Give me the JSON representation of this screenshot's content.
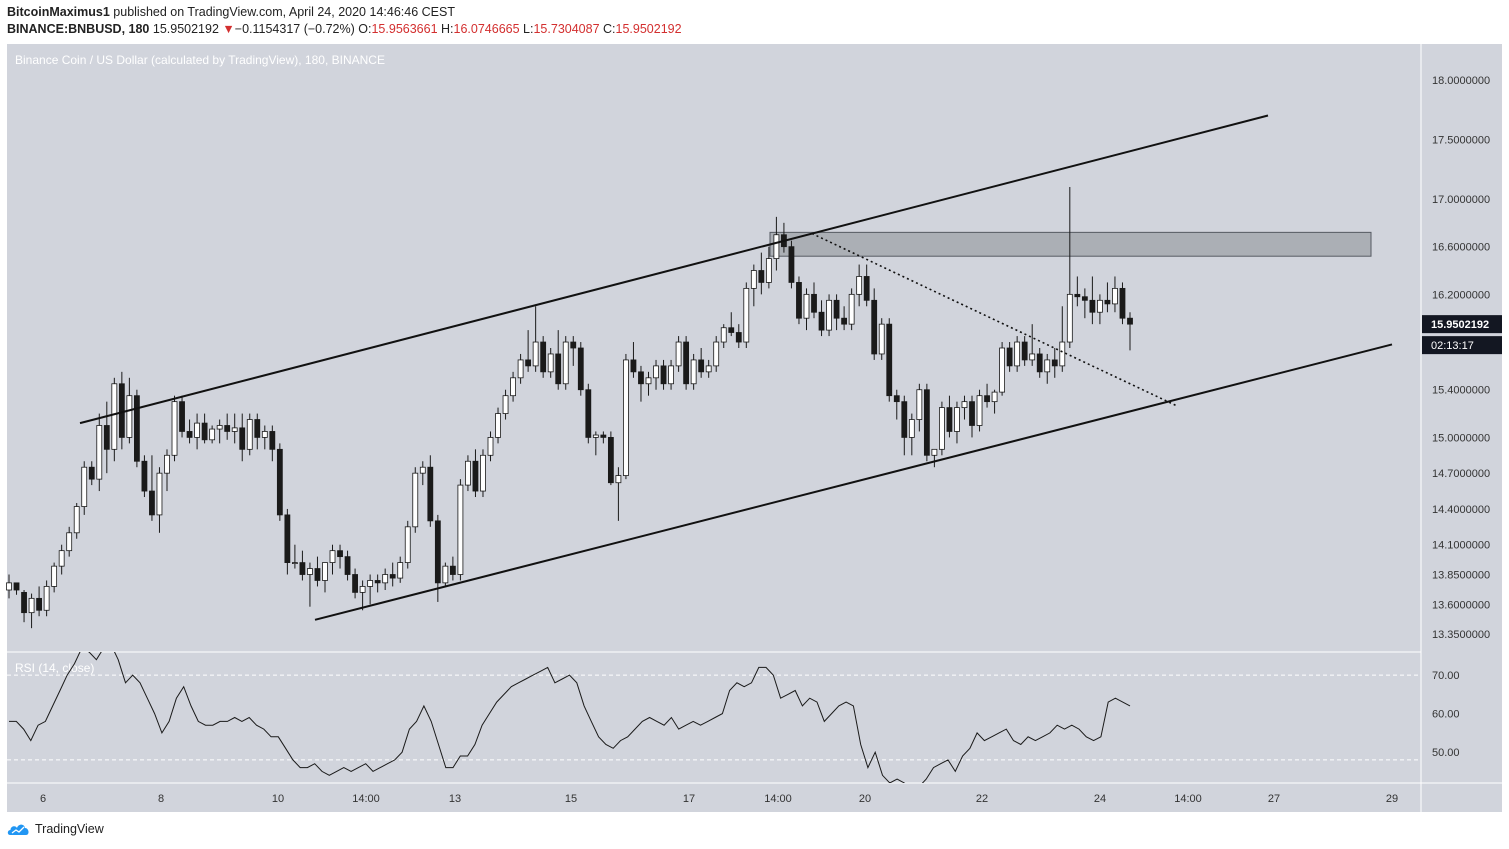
{
  "header": {
    "author": "BitcoinMaximus1",
    "published_text": "published on TradingView.com, April 24, 2020 14:46:46 CEST",
    "symbol": "BINANCE:BNBUSD, 180",
    "last_price": "15.9502192",
    "change_arrow": "▼",
    "change_text": "−0.1154317 (−0.72%)",
    "o_label": "O:",
    "o_value": "15.9563661",
    "h_label": "H:",
    "h_value": "16.0746665",
    "l_label": "L:",
    "l_value": "15.7304087",
    "c_label": "C:",
    "c_value": "15.9502192"
  },
  "footer": {
    "brand": "TradingView"
  },
  "colors": {
    "background": "#d1d4dc",
    "bullish": "#ffffff",
    "bearish": "#1a1a1a",
    "price_tag_bg": "#131722",
    "resistance_zone": "#8c8f96"
  },
  "chart_data": [
    {
      "type": "candlestick",
      "title": "Binance Coin / US Dollar (calculated by TradingView), 180, BINANCE",
      "ylim": [
        13.2,
        18.3
      ],
      "x_ticks": [
        "6",
        "8",
        "10",
        "14:00",
        "13",
        "15",
        "17",
        "14:00",
        "20",
        "22",
        "24",
        "14:00",
        "27",
        "29"
      ],
      "y_ticks": [
        "13.3500000",
        "13.6000000",
        "13.8500000",
        "14.1000000",
        "14.4000000",
        "14.7000000",
        "15.0000000",
        "15.4000000",
        "16.2000000",
        "16.6000000",
        "17.0000000",
        "17.5000000",
        "18.0000000"
      ],
      "last_price_label": "15.9502192",
      "countdown_label": "02:13:17",
      "candles": [
        [
          13.72,
          13.85,
          13.65,
          13.78
        ],
        [
          13.78,
          13.78,
          13.68,
          13.72
        ],
        [
          13.7,
          13.72,
          13.45,
          13.53
        ],
        [
          13.53,
          13.69,
          13.4,
          13.65
        ],
        [
          13.65,
          13.75,
          13.5,
          13.55
        ],
        [
          13.55,
          13.8,
          13.5,
          13.75
        ],
        [
          13.75,
          13.95,
          13.7,
          13.92
        ],
        [
          13.92,
          14.1,
          13.85,
          14.05
        ],
        [
          14.05,
          14.25,
          14.0,
          14.2
        ],
        [
          14.2,
          14.45,
          14.15,
          14.42
        ],
        [
          14.42,
          14.8,
          14.35,
          14.75
        ],
        [
          14.75,
          14.8,
          14.6,
          14.65
        ],
        [
          14.65,
          15.2,
          14.55,
          15.1
        ],
        [
          15.1,
          15.3,
          14.7,
          14.9
        ],
        [
          14.9,
          15.5,
          14.8,
          15.45
        ],
        [
          15.45,
          15.55,
          14.9,
          15.0
        ],
        [
          15.0,
          15.5,
          14.95,
          15.35
        ],
        [
          15.35,
          15.4,
          14.75,
          14.8
        ],
        [
          14.8,
          14.85,
          14.5,
          14.55
        ],
        [
          14.55,
          14.85,
          14.3,
          14.35
        ],
        [
          14.35,
          14.75,
          14.2,
          14.7
        ],
        [
          14.7,
          14.9,
          14.55,
          14.85
        ],
        [
          14.85,
          15.35,
          14.8,
          15.3
        ],
        [
          15.3,
          15.35,
          15.0,
          15.05
        ],
        [
          15.05,
          15.15,
          14.95,
          15.0
        ],
        [
          15.0,
          15.2,
          14.9,
          15.12
        ],
        [
          15.12,
          15.2,
          14.95,
          14.98
        ],
        [
          14.98,
          15.1,
          14.95,
          15.07
        ],
        [
          15.07,
          15.15,
          14.95,
          15.1
        ],
        [
          15.1,
          15.2,
          14.98,
          15.05
        ],
        [
          15.05,
          15.2,
          14.95,
          15.08
        ],
        [
          15.08,
          15.2,
          14.8,
          14.9
        ],
        [
          14.9,
          15.2,
          14.85,
          15.15
        ],
        [
          15.15,
          15.2,
          14.9,
          15.0
        ],
        [
          15.0,
          15.1,
          14.9,
          15.05
        ],
        [
          15.05,
          15.1,
          14.8,
          14.9
        ],
        [
          14.9,
          14.95,
          14.3,
          14.35
        ],
        [
          14.35,
          14.4,
          13.85,
          13.95
        ],
        [
          13.95,
          14.1,
          13.9,
          13.95
        ],
        [
          13.95,
          14.05,
          13.8,
          13.85
        ],
        [
          13.85,
          13.95,
          13.58,
          13.9
        ],
        [
          13.9,
          14.0,
          13.75,
          13.8
        ],
        [
          13.8,
          13.95,
          13.7,
          13.95
        ],
        [
          13.95,
          14.1,
          13.85,
          14.05
        ],
        [
          14.05,
          14.1,
          13.9,
          14.0
        ],
        [
          14.0,
          14.05,
          13.8,
          13.85
        ],
        [
          13.85,
          13.9,
          13.65,
          13.7
        ],
        [
          13.7,
          13.8,
          13.55,
          13.75
        ],
        [
          13.75,
          13.85,
          13.6,
          13.8
        ],
        [
          13.8,
          13.85,
          13.7,
          13.78
        ],
        [
          13.78,
          13.9,
          13.72,
          13.85
        ],
        [
          13.85,
          13.95,
          13.75,
          13.82
        ],
        [
          13.82,
          14.0,
          13.78,
          13.95
        ],
        [
          13.95,
          14.3,
          13.9,
          14.25
        ],
        [
          14.25,
          14.75,
          14.2,
          14.7
        ],
        [
          14.7,
          14.8,
          14.6,
          14.75
        ],
        [
          14.75,
          14.85,
          14.25,
          14.3
        ],
        [
          14.3,
          14.35,
          13.62,
          13.78
        ],
        [
          13.78,
          13.95,
          13.75,
          13.92
        ],
        [
          13.92,
          14.0,
          13.8,
          13.85
        ],
        [
          13.85,
          14.65,
          13.8,
          14.6
        ],
        [
          14.6,
          14.85,
          14.55,
          14.8
        ],
        [
          14.8,
          14.9,
          14.5,
          14.55
        ],
        [
          14.55,
          14.9,
          14.5,
          14.85
        ],
        [
          14.85,
          15.05,
          14.8,
          15.0
        ],
        [
          15.0,
          15.25,
          14.95,
          15.2
        ],
        [
          15.2,
          15.4,
          15.15,
          15.35
        ],
        [
          15.35,
          15.55,
          15.3,
          15.5
        ],
        [
          15.5,
          15.7,
          15.45,
          15.65
        ],
        [
          15.65,
          15.9,
          15.55,
          15.6
        ],
        [
          15.6,
          16.1,
          15.55,
          15.8
        ],
        [
          15.8,
          15.85,
          15.5,
          15.55
        ],
        [
          15.55,
          15.75,
          15.5,
          15.7
        ],
        [
          15.7,
          15.9,
          15.4,
          15.45
        ],
        [
          15.45,
          15.85,
          15.4,
          15.8
        ],
        [
          15.8,
          15.85,
          15.6,
          15.75
        ],
        [
          15.75,
          15.8,
          15.35,
          15.4
        ],
        [
          15.4,
          15.45,
          14.95,
          15.0
        ],
        [
          15.0,
          15.05,
          14.85,
          15.02
        ],
        [
          15.02,
          15.05,
          14.95,
          15.0
        ],
        [
          15.0,
          15.05,
          14.6,
          14.62
        ],
        [
          14.62,
          14.75,
          14.3,
          14.68
        ],
        [
          14.68,
          15.7,
          14.65,
          15.65
        ],
        [
          15.65,
          15.8,
          15.5,
          15.55
        ],
        [
          15.55,
          15.6,
          15.3,
          15.45
        ],
        [
          15.45,
          15.55,
          15.35,
          15.5
        ],
        [
          15.5,
          15.65,
          15.4,
          15.6
        ],
        [
          15.6,
          15.65,
          15.4,
          15.45
        ],
        [
          15.45,
          15.65,
          15.4,
          15.6
        ],
        [
          15.6,
          15.85,
          15.55,
          15.8
        ],
        [
          15.8,
          15.85,
          15.4,
          15.45
        ],
        [
          15.45,
          15.7,
          15.4,
          15.65
        ],
        [
          15.65,
          15.75,
          15.5,
          15.55
        ],
        [
          15.55,
          15.65,
          15.5,
          15.6
        ],
        [
          15.6,
          15.85,
          15.55,
          15.8
        ],
        [
          15.8,
          15.95,
          15.75,
          15.92
        ],
        [
          15.92,
          16.05,
          15.85,
          15.88
        ],
        [
          15.88,
          15.95,
          15.75,
          15.8
        ],
        [
          15.8,
          16.3,
          15.75,
          16.25
        ],
        [
          16.25,
          16.45,
          16.1,
          16.4
        ],
        [
          16.4,
          16.55,
          16.2,
          16.3
        ],
        [
          16.3,
          16.6,
          16.25,
          16.5
        ],
        [
          16.5,
          16.85,
          16.4,
          16.7
        ],
        [
          16.7,
          16.8,
          16.55,
          16.6
        ],
        [
          16.6,
          16.65,
          16.25,
          16.3
        ],
        [
          16.3,
          16.35,
          15.95,
          16.0
        ],
        [
          16.0,
          16.25,
          15.9,
          16.2
        ],
        [
          16.2,
          16.3,
          16.0,
          16.05
        ],
        [
          16.05,
          16.15,
          15.85,
          15.9
        ],
        [
          15.9,
          16.2,
          15.85,
          16.15
        ],
        [
          16.15,
          16.2,
          15.9,
          16.0
        ],
        [
          16.0,
          16.1,
          15.9,
          15.95
        ],
        [
          15.95,
          16.25,
          15.9,
          16.2
        ],
        [
          16.2,
          16.45,
          16.1,
          16.35
        ],
        [
          16.35,
          16.45,
          16.1,
          16.15
        ],
        [
          16.15,
          16.25,
          15.65,
          15.7
        ],
        [
          15.7,
          16.0,
          15.65,
          15.95
        ],
        [
          15.95,
          16.0,
          15.3,
          15.35
        ],
        [
          15.35,
          15.4,
          15.15,
          15.3
        ],
        [
          15.3,
          15.35,
          14.85,
          15.0
        ],
        [
          15.0,
          15.2,
          14.85,
          15.15
        ],
        [
          15.15,
          15.45,
          15.05,
          15.4
        ],
        [
          15.4,
          15.45,
          14.8,
          14.85
        ],
        [
          14.85,
          14.9,
          14.75,
          14.9
        ],
        [
          14.9,
          15.3,
          14.85,
          15.25
        ],
        [
          15.25,
          15.35,
          15.0,
          15.05
        ],
        [
          15.05,
          15.3,
          14.95,
          15.25
        ],
        [
          15.25,
          15.35,
          15.15,
          15.3
        ],
        [
          15.3,
          15.35,
          15.0,
          15.1
        ],
        [
          15.1,
          15.4,
          15.05,
          15.35
        ],
        [
          15.35,
          15.45,
          15.25,
          15.3
        ],
        [
          15.3,
          15.4,
          15.2,
          15.38
        ],
        [
          15.38,
          15.8,
          15.35,
          15.75
        ],
        [
          15.75,
          15.8,
          15.55,
          15.6
        ],
        [
          15.6,
          15.85,
          15.55,
          15.8
        ],
        [
          15.8,
          15.85,
          15.6,
          15.65
        ],
        [
          15.65,
          15.95,
          15.6,
          15.7
        ],
        [
          15.7,
          15.75,
          15.5,
          15.55
        ],
        [
          15.55,
          15.7,
          15.45,
          15.65
        ],
        [
          15.65,
          15.75,
          15.5,
          15.6
        ],
        [
          15.6,
          16.1,
          15.55,
          15.8
        ],
        [
          15.8,
          17.1,
          15.75,
          16.2
        ],
        [
          16.2,
          16.35,
          16.1,
          16.18
        ],
        [
          16.18,
          16.25,
          16.0,
          16.15
        ],
        [
          16.15,
          16.35,
          15.95,
          16.05
        ],
        [
          16.05,
          16.2,
          15.95,
          16.15
        ],
        [
          16.15,
          16.3,
          16.05,
          16.12
        ],
        [
          16.12,
          16.35,
          16.05,
          16.25
        ],
        [
          16.25,
          16.3,
          15.95,
          16.0
        ],
        [
          16.0,
          16.05,
          15.73,
          15.95
        ]
      ],
      "trendlines": [
        {
          "name": "channel-upper",
          "style": "solid",
          "points": [
            [
              80,
              15.12
            ],
            [
              1268,
              17.7
            ]
          ]
        },
        {
          "name": "channel-lower",
          "style": "solid",
          "points": [
            [
              315,
              13.47
            ],
            [
              1392,
              15.78
            ]
          ]
        },
        {
          "name": "descending-trendline",
          "style": "dotted",
          "points": [
            [
              812,
              16.71
            ],
            [
              1178,
              15.26
            ]
          ]
        }
      ],
      "resistance_zone": {
        "x0": 770,
        "x1": 1371,
        "y_low": 16.52,
        "y_high": 16.72
      }
    },
    {
      "type": "line",
      "title": "RSI (14, close)",
      "ylim": [
        42,
        76
      ],
      "y_ticks": [
        "70.00",
        "60.00",
        "50.00"
      ],
      "band": [
        48,
        70
      ],
      "values": [
        58,
        58,
        56,
        53,
        57,
        58,
        62,
        66,
        70,
        73,
        77,
        76,
        74,
        77,
        78,
        74,
        68,
        70,
        68,
        64,
        60,
        55,
        58,
        64,
        67,
        62,
        58,
        57,
        57,
        58,
        58,
        59,
        58,
        59,
        57,
        56,
        54,
        54,
        51,
        48,
        46,
        46,
        47,
        45,
        44,
        45,
        46,
        45,
        46,
        47,
        45,
        46,
        47,
        48,
        50,
        56,
        58,
        62,
        58,
        52,
        46,
        46,
        49,
        49,
        52,
        57,
        60,
        63,
        65,
        67,
        68,
        69,
        70,
        71,
        72,
        68,
        69,
        70,
        68,
        62,
        58,
        54,
        52,
        51,
        53,
        54,
        56,
        58,
        59,
        58,
        57,
        59,
        56,
        57,
        58,
        57,
        58,
        59,
        60,
        66,
        68,
        67,
        68,
        72,
        72,
        70,
        64,
        65,
        66,
        62,
        64,
        63,
        58,
        60,
        62,
        63,
        62,
        52,
        46,
        50,
        44,
        42,
        43,
        42,
        40,
        41,
        43,
        46,
        47,
        48,
        45,
        49,
        51,
        55,
        53,
        54,
        55,
        56,
        53,
        52,
        54,
        53,
        54,
        55,
        57,
        56,
        57,
        56,
        54,
        53,
        54,
        63,
        64,
        63,
        62
      ]
    }
  ]
}
